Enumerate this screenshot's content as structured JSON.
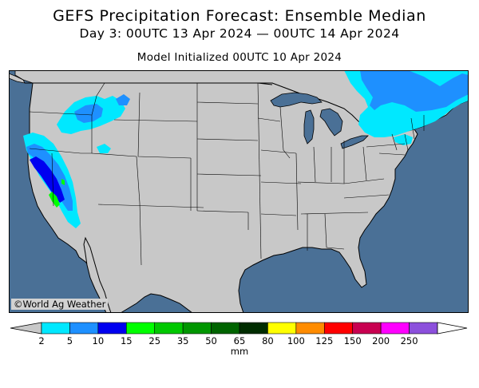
{
  "title": "GEFS Precipitation Forecast: Ensemble Median",
  "period": "Day 3: 00UTC 13 Apr 2024 — 00UTC 14 Apr 2024",
  "initialized": "Model Initialized 00UTC 10 Apr 2024",
  "credit": "©World Ag Weather",
  "colorbar": {
    "unit": "mm",
    "ticks": [
      "2",
      "5",
      "10",
      "15",
      "25",
      "35",
      "50",
      "65",
      "80",
      "100",
      "125",
      "150",
      "200",
      "250"
    ],
    "colors": [
      "#00e8ff",
      "#1e90ff",
      "#0000f0",
      "#00ff00",
      "#00c800",
      "#009600",
      "#006400",
      "#002d00",
      "#ffff00",
      "#ff8c00",
      "#ff0000",
      "#c80050",
      "#ff00ff",
      "#8c50dc"
    ],
    "under_color": "#c8c8c8",
    "over_color": "#ffffff"
  },
  "colors": {
    "ocean": "#4a7096",
    "land": "#c8c8c8",
    "borders": "#000000"
  }
}
